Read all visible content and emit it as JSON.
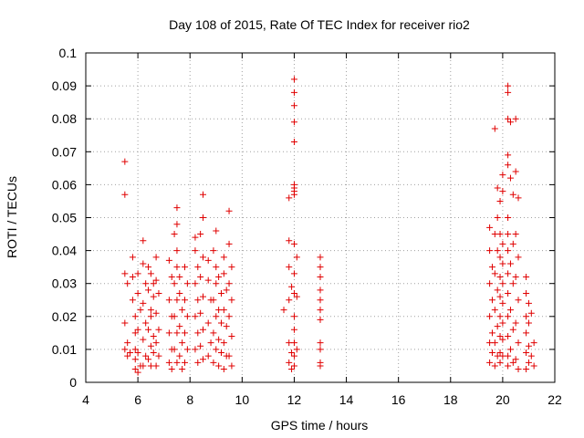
{
  "chart_data": {
    "type": "scatter",
    "title": "Day 108 of 2015, Rate Of TEC Index for receiver rio2",
    "xlabel": "GPS time / hours",
    "ylabel": "ROTI / TECUs",
    "xlim": [
      4,
      22
    ],
    "ylim": [
      0,
      0.1
    ],
    "xticks": [
      4,
      6,
      8,
      10,
      12,
      14,
      16,
      18,
      20,
      22
    ],
    "xtick_labels": [
      "4",
      "6",
      "8",
      "10",
      "12",
      "14",
      "16",
      "18",
      "20",
      "22"
    ],
    "yticks": [
      0,
      0.01,
      0.02,
      0.03,
      0.04,
      0.05,
      0.06,
      0.07,
      0.08,
      0.09,
      0.1
    ],
    "ytick_labels": [
      "0",
      "0.01",
      "0.02",
      "0.03",
      "0.04",
      "0.05",
      "0.06",
      "0.07",
      "0.08",
      "0.09",
      "0.1"
    ],
    "grid": true,
    "marker": "plus",
    "marker_color": "#e00000",
    "series": [
      {
        "name": "ROTI",
        "points": [
          [
            5.5,
            0.067
          ],
          [
            5.5,
            0.057
          ],
          [
            5.5,
            0.033
          ],
          [
            5.6,
            0.03
          ],
          [
            5.5,
            0.018
          ],
          [
            5.6,
            0.012
          ],
          [
            5.5,
            0.01
          ],
          [
            5.7,
            0.009
          ],
          [
            5.6,
            0.008
          ],
          [
            5.8,
            0.038
          ],
          [
            5.8,
            0.032
          ],
          [
            5.8,
            0.025
          ],
          [
            5.9,
            0.02
          ],
          [
            5.9,
            0.015
          ],
          [
            5.9,
            0.01
          ],
          [
            5.9,
            0.007
          ],
          [
            5.9,
            0.004
          ],
          [
            6.0,
            0.033
          ],
          [
            6.0,
            0.027
          ],
          [
            6.1,
            0.022
          ],
          [
            6.0,
            0.016
          ],
          [
            6.0,
            0.009
          ],
          [
            6.1,
            0.005
          ],
          [
            6.0,
            0.003
          ],
          [
            6.2,
            0.043
          ],
          [
            6.2,
            0.036
          ],
          [
            6.3,
            0.03
          ],
          [
            6.2,
            0.024
          ],
          [
            6.3,
            0.018
          ],
          [
            6.2,
            0.013
          ],
          [
            6.3,
            0.008
          ],
          [
            6.2,
            0.005
          ],
          [
            6.4,
            0.035
          ],
          [
            6.4,
            0.028
          ],
          [
            6.5,
            0.022
          ],
          [
            6.4,
            0.016
          ],
          [
            6.5,
            0.011
          ],
          [
            6.4,
            0.007
          ],
          [
            6.5,
            0.033
          ],
          [
            6.6,
            0.03
          ],
          [
            6.6,
            0.026
          ],
          [
            6.5,
            0.02
          ],
          [
            6.6,
            0.014
          ],
          [
            6.6,
            0.009
          ],
          [
            6.5,
            0.005
          ],
          [
            6.7,
            0.038
          ],
          [
            6.7,
            0.031
          ],
          [
            6.8,
            0.027
          ],
          [
            6.7,
            0.021
          ],
          [
            6.8,
            0.016
          ],
          [
            6.7,
            0.012
          ],
          [
            6.8,
            0.008
          ],
          [
            6.7,
            0.005
          ],
          [
            7.2,
            0.037
          ],
          [
            7.3,
            0.032
          ],
          [
            7.2,
            0.025
          ],
          [
            7.3,
            0.02
          ],
          [
            7.2,
            0.015
          ],
          [
            7.3,
            0.01
          ],
          [
            7.2,
            0.006
          ],
          [
            7.3,
            0.004
          ],
          [
            7.5,
            0.053
          ],
          [
            7.5,
            0.048
          ],
          [
            7.4,
            0.045
          ],
          [
            7.5,
            0.04
          ],
          [
            7.5,
            0.035
          ],
          [
            7.4,
            0.03
          ],
          [
            7.5,
            0.025
          ],
          [
            7.4,
            0.02
          ],
          [
            7.5,
            0.015
          ],
          [
            7.4,
            0.01
          ],
          [
            7.5,
            0.006
          ],
          [
            7.6,
            0.032
          ],
          [
            7.6,
            0.027
          ],
          [
            7.7,
            0.022
          ],
          [
            7.6,
            0.017
          ],
          [
            7.7,
            0.012
          ],
          [
            7.6,
            0.008
          ],
          [
            7.7,
            0.004
          ],
          [
            7.8,
            0.035
          ],
          [
            7.9,
            0.03
          ],
          [
            7.8,
            0.025
          ],
          [
            7.9,
            0.02
          ],
          [
            7.8,
            0.015
          ],
          [
            7.9,
            0.01
          ],
          [
            7.8,
            0.006
          ],
          [
            8.2,
            0.044
          ],
          [
            8.2,
            0.04
          ],
          [
            8.3,
            0.035
          ],
          [
            8.2,
            0.03
          ],
          [
            8.3,
            0.025
          ],
          [
            8.2,
            0.02
          ],
          [
            8.3,
            0.015
          ],
          [
            8.2,
            0.01
          ],
          [
            8.3,
            0.006
          ],
          [
            8.5,
            0.057
          ],
          [
            8.5,
            0.05
          ],
          [
            8.4,
            0.045
          ],
          [
            8.5,
            0.038
          ],
          [
            8.4,
            0.032
          ],
          [
            8.5,
            0.026
          ],
          [
            8.4,
            0.021
          ],
          [
            8.5,
            0.016
          ],
          [
            8.4,
            0.011
          ],
          [
            8.5,
            0.007
          ],
          [
            8.7,
            0.037
          ],
          [
            8.7,
            0.031
          ],
          [
            8.8,
            0.025
          ],
          [
            8.7,
            0.018
          ],
          [
            8.8,
            0.012
          ],
          [
            8.7,
            0.008
          ],
          [
            9.0,
            0.046
          ],
          [
            8.9,
            0.04
          ],
          [
            9.0,
            0.035
          ],
          [
            9.0,
            0.03
          ],
          [
            8.9,
            0.025
          ],
          [
            9.0,
            0.02
          ],
          [
            8.9,
            0.015
          ],
          [
            9.0,
            0.01
          ],
          [
            8.9,
            0.006
          ],
          [
            9.1,
            0.032
          ],
          [
            9.2,
            0.027
          ],
          [
            9.1,
            0.022
          ],
          [
            9.2,
            0.018
          ],
          [
            9.1,
            0.013
          ],
          [
            9.2,
            0.009
          ],
          [
            9.1,
            0.005
          ],
          [
            9.3,
            0.038
          ],
          [
            9.3,
            0.033
          ],
          [
            9.4,
            0.028
          ],
          [
            9.3,
            0.022
          ],
          [
            9.4,
            0.017
          ],
          [
            9.3,
            0.012
          ],
          [
            9.4,
            0.008
          ],
          [
            9.3,
            0.004
          ],
          [
            9.5,
            0.052
          ],
          [
            9.5,
            0.042
          ],
          [
            9.6,
            0.035
          ],
          [
            9.5,
            0.03
          ],
          [
            9.6,
            0.025
          ],
          [
            9.5,
            0.02
          ],
          [
            9.6,
            0.014
          ],
          [
            9.5,
            0.008
          ],
          [
            9.6,
            0.005
          ],
          [
            11.6,
            0.022
          ],
          [
            11.8,
            0.056
          ],
          [
            11.8,
            0.043
          ],
          [
            11.8,
            0.035
          ],
          [
            11.9,
            0.029
          ],
          [
            11.8,
            0.025
          ],
          [
            11.8,
            0.012
          ],
          [
            11.9,
            0.009
          ],
          [
            11.8,
            0.006
          ],
          [
            11.9,
            0.004
          ],
          [
            12.0,
            0.092
          ],
          [
            12.0,
            0.088
          ],
          [
            12.0,
            0.084
          ],
          [
            12.0,
            0.079
          ],
          [
            12.0,
            0.073
          ],
          [
            12.0,
            0.06
          ],
          [
            12.0,
            0.059
          ],
          [
            12.0,
            0.058
          ],
          [
            12.0,
            0.057
          ],
          [
            12.0,
            0.042
          ],
          [
            12.0,
            0.033
          ],
          [
            12.0,
            0.027
          ],
          [
            12.0,
            0.02
          ],
          [
            12.0,
            0.016
          ],
          [
            12.0,
            0.012
          ],
          [
            12.0,
            0.008
          ],
          [
            12.0,
            0.005
          ],
          [
            12.1,
            0.038
          ],
          [
            12.1,
            0.026
          ],
          [
            12.1,
            0.01
          ],
          [
            13.0,
            0.038
          ],
          [
            13.0,
            0.035
          ],
          [
            13.0,
            0.032
          ],
          [
            13.0,
            0.028
          ],
          [
            13.0,
            0.025
          ],
          [
            13.0,
            0.022
          ],
          [
            13.0,
            0.019
          ],
          [
            13.0,
            0.012
          ],
          [
            13.0,
            0.01
          ],
          [
            13.0,
            0.006
          ],
          [
            13.0,
            0.005
          ],
          [
            19.5,
            0.047
          ],
          [
            19.5,
            0.04
          ],
          [
            19.6,
            0.035
          ],
          [
            19.5,
            0.03
          ],
          [
            19.6,
            0.025
          ],
          [
            19.5,
            0.02
          ],
          [
            19.6,
            0.015
          ],
          [
            19.5,
            0.012
          ],
          [
            19.6,
            0.009
          ],
          [
            19.5,
            0.006
          ],
          [
            19.7,
            0.077
          ],
          [
            19.7,
            0.045
          ],
          [
            19.8,
            0.04
          ],
          [
            19.7,
            0.033
          ],
          [
            19.8,
            0.028
          ],
          [
            19.7,
            0.022
          ],
          [
            19.8,
            0.017
          ],
          [
            19.7,
            0.012
          ],
          [
            19.8,
            0.008
          ],
          [
            19.7,
            0.005
          ],
          [
            19.8,
            0.059
          ],
          [
            19.9,
            0.055
          ],
          [
            19.8,
            0.05
          ],
          [
            19.9,
            0.045
          ],
          [
            19.9,
            0.038
          ],
          [
            19.9,
            0.032
          ],
          [
            19.9,
            0.026
          ],
          [
            19.9,
            0.02
          ],
          [
            19.9,
            0.014
          ],
          [
            19.9,
            0.009
          ],
          [
            19.9,
            0.006
          ],
          [
            20.0,
            0.063
          ],
          [
            20.0,
            0.058
          ],
          [
            20.0,
            0.042
          ],
          [
            20.0,
            0.036
          ],
          [
            20.0,
            0.03
          ],
          [
            20.0,
            0.024
          ],
          [
            20.0,
            0.018
          ],
          [
            20.0,
            0.013
          ],
          [
            20.0,
            0.008
          ],
          [
            20.2,
            0.09
          ],
          [
            20.2,
            0.088
          ],
          [
            20.2,
            0.08
          ],
          [
            20.2,
            0.069
          ],
          [
            20.2,
            0.066
          ],
          [
            20.2,
            0.05
          ],
          [
            20.2,
            0.045
          ],
          [
            20.2,
            0.04
          ],
          [
            20.2,
            0.033
          ],
          [
            20.2,
            0.027
          ],
          [
            20.2,
            0.02
          ],
          [
            20.2,
            0.014
          ],
          [
            20.2,
            0.008
          ],
          [
            20.2,
            0.005
          ],
          [
            20.3,
            0.079
          ],
          [
            20.3,
            0.062
          ],
          [
            20.4,
            0.057
          ],
          [
            20.4,
            0.042
          ],
          [
            20.3,
            0.036
          ],
          [
            20.4,
            0.03
          ],
          [
            20.3,
            0.022
          ],
          [
            20.4,
            0.016
          ],
          [
            20.3,
            0.01
          ],
          [
            20.4,
            0.006
          ],
          [
            20.5,
            0.08
          ],
          [
            20.5,
            0.064
          ],
          [
            20.6,
            0.056
          ],
          [
            20.5,
            0.045
          ],
          [
            20.6,
            0.038
          ],
          [
            20.5,
            0.032
          ],
          [
            20.6,
            0.025
          ],
          [
            20.5,
            0.018
          ],
          [
            20.6,
            0.012
          ],
          [
            20.5,
            0.007
          ],
          [
            20.6,
            0.004
          ],
          [
            20.9,
            0.032
          ],
          [
            20.9,
            0.027
          ],
          [
            21.0,
            0.024
          ],
          [
            20.9,
            0.02
          ],
          [
            21.0,
            0.018
          ],
          [
            20.9,
            0.015
          ],
          [
            21.0,
            0.011
          ],
          [
            20.9,
            0.009
          ],
          [
            21.0,
            0.006
          ],
          [
            20.9,
            0.004
          ],
          [
            21.1,
            0.021
          ],
          [
            21.2,
            0.012
          ],
          [
            21.1,
            0.008
          ],
          [
            21.2,
            0.005
          ]
        ]
      }
    ]
  }
}
